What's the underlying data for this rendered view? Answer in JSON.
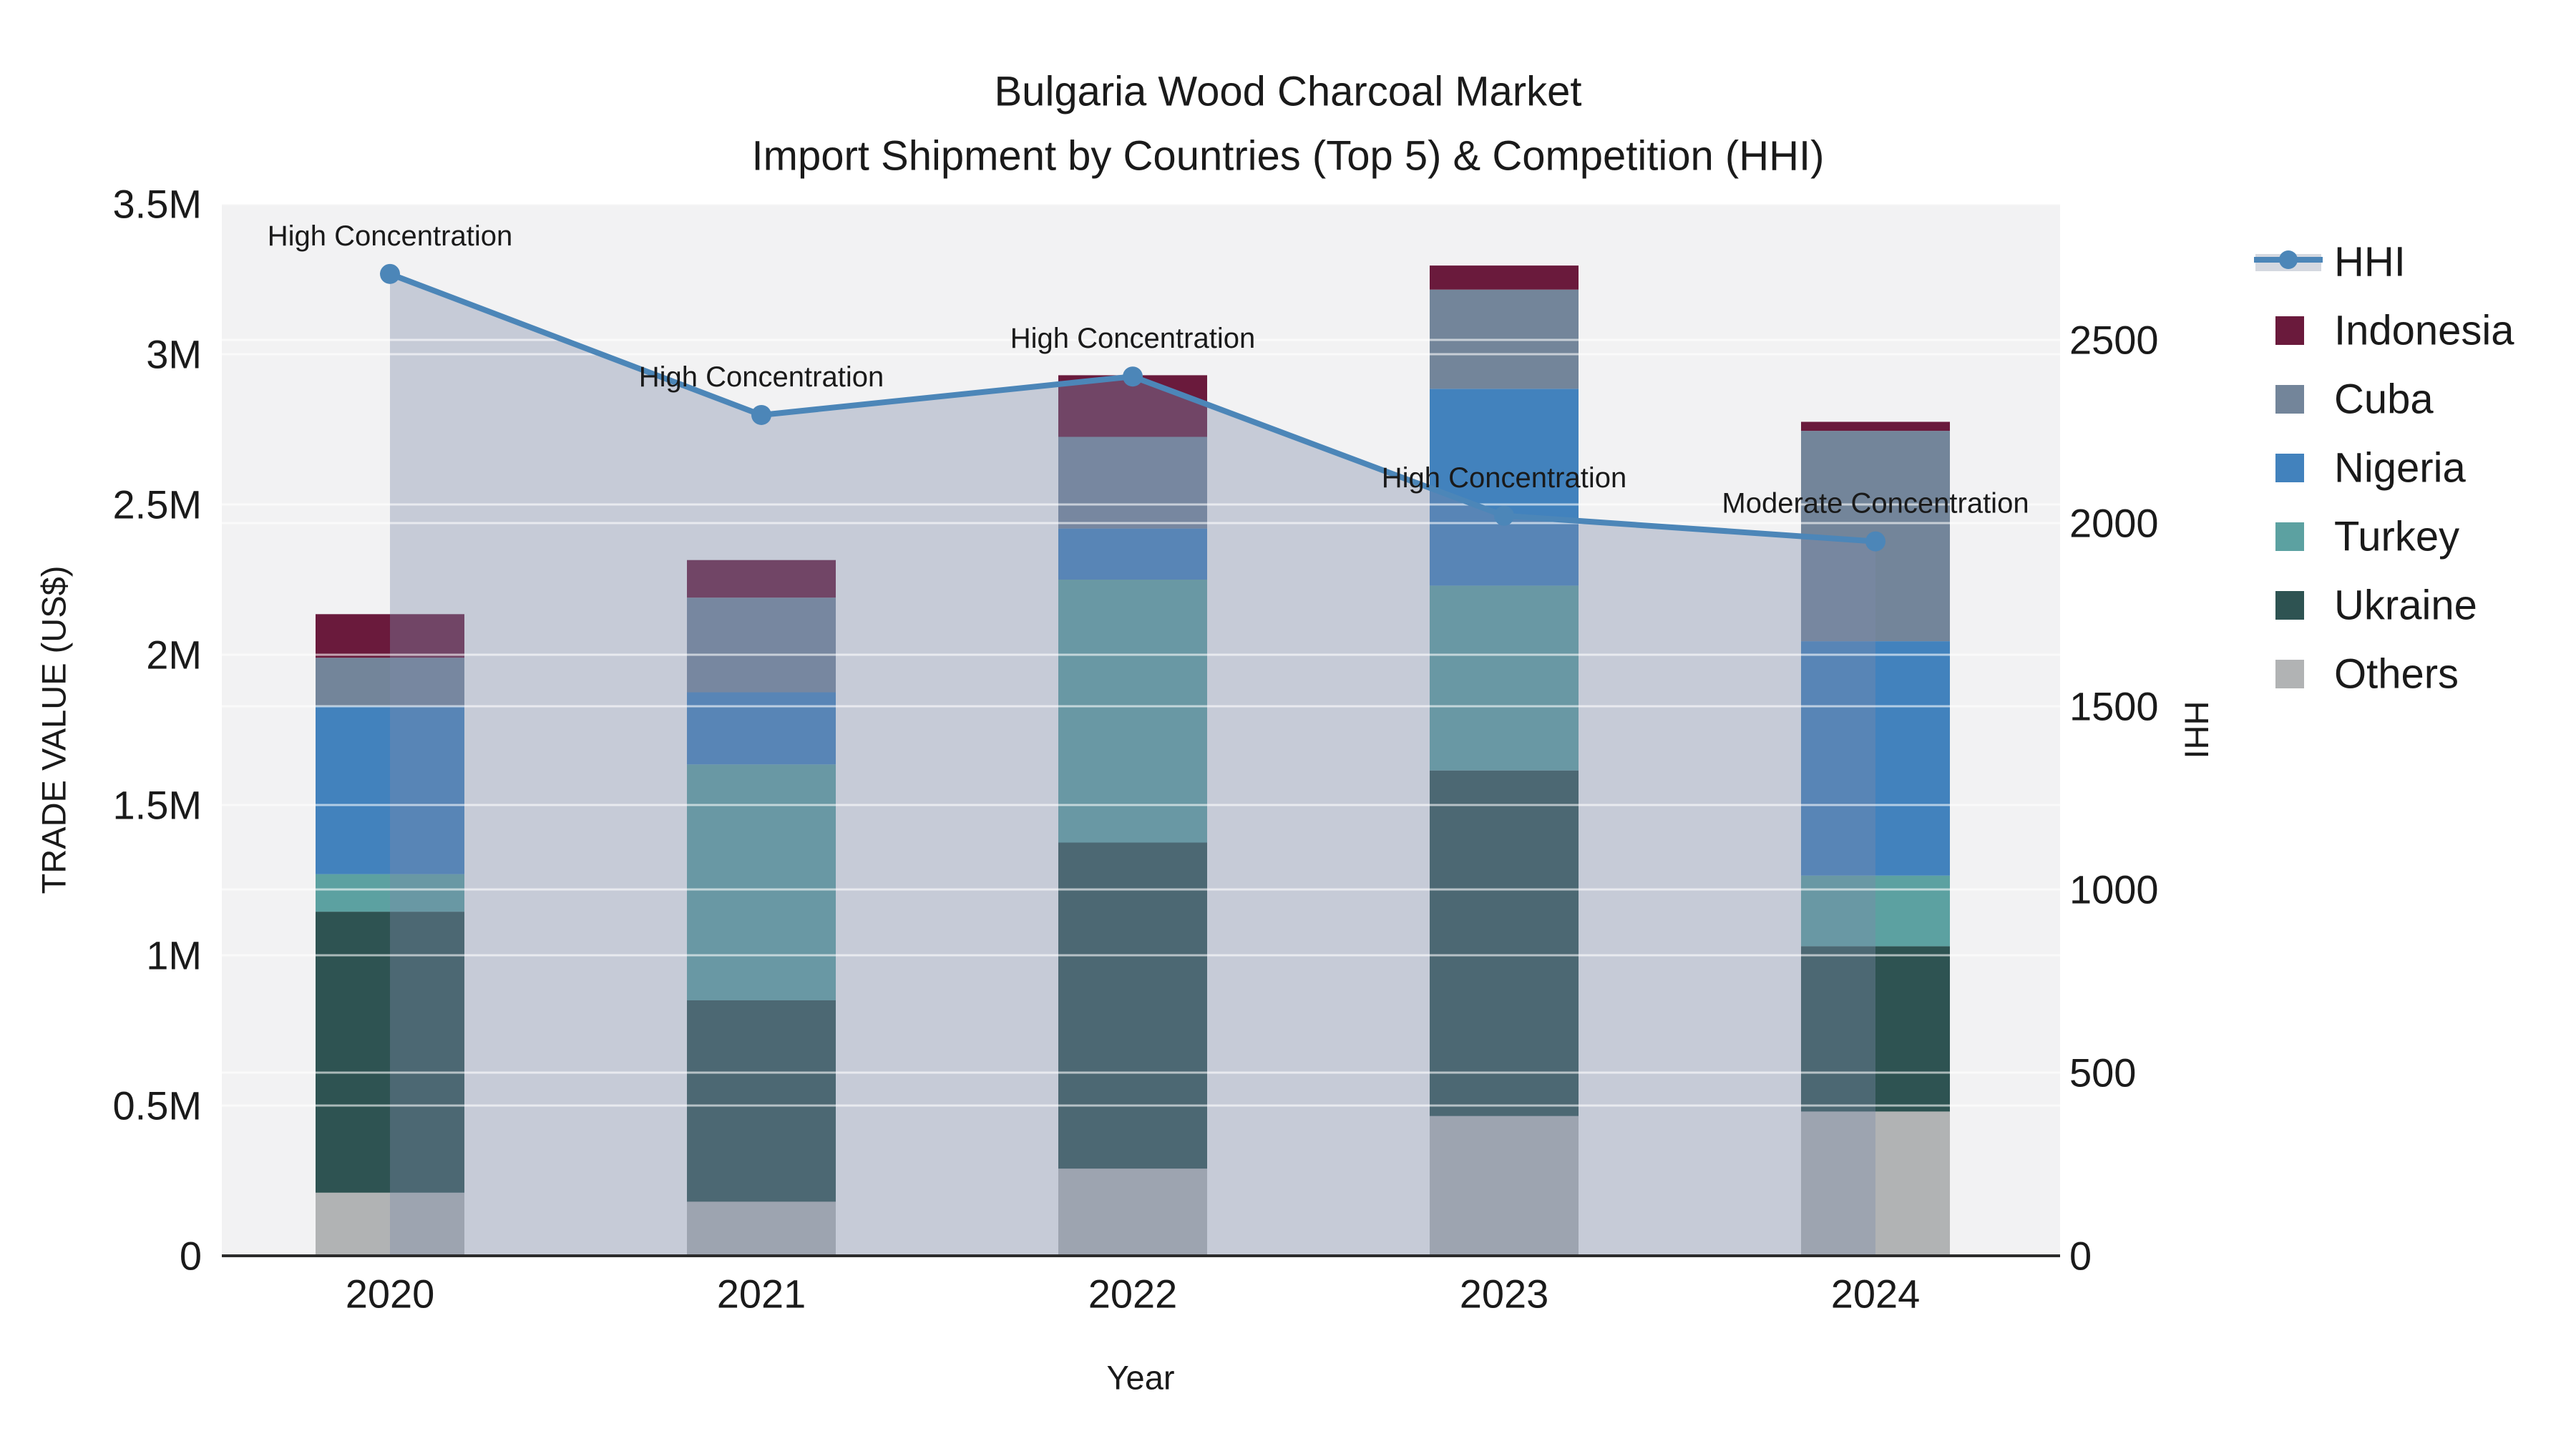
{
  "title": {
    "line1": "Bulgaria Wood Charcoal Market",
    "line2": "Import Shipment by Countries (Top 5) & Competition (HHI)"
  },
  "axes": {
    "x": {
      "label": "Year",
      "ticks": [
        "2020",
        "2021",
        "2022",
        "2023",
        "2024"
      ]
    },
    "y_left": {
      "label": "TRADE VALUE (US$)",
      "ticks": [
        "0",
        "0.5M",
        "1M",
        "1.5M",
        "2M",
        "2.5M",
        "3M",
        "3.5M"
      ],
      "max": 3500000,
      "tick_step": 500000
    },
    "y_right": {
      "label": "HHI",
      "ticks": [
        "0",
        "500",
        "1000",
        "1500",
        "2000",
        "2500"
      ],
      "tick_step": 500
    }
  },
  "chart_data": {
    "type": "bar+line",
    "categories": [
      "2020",
      "2021",
      "2022",
      "2023",
      "2024"
    ],
    "stacked": true,
    "grid": true,
    "legend_position": "right",
    "ylabel_left": "TRADE VALUE (US$)",
    "ylabel_right": "HHI",
    "xlabel": "Year",
    "ylim_left": [
      0,
      3500000
    ],
    "series": [
      {
        "name": "Others",
        "color": "#b1b3b4",
        "values": [
          210000,
          180000,
          290000,
          465000,
          480000
        ]
      },
      {
        "name": "Ukraine",
        "color": "#2e5352",
        "values": [
          935000,
          670000,
          1085000,
          1150000,
          550000
        ]
      },
      {
        "name": "Turkey",
        "color": "#5ca1a1",
        "values": [
          125000,
          785000,
          875000,
          615000,
          235000
        ]
      },
      {
        "name": "Nigeria",
        "color": "#4282bd",
        "values": [
          560000,
          240000,
          170000,
          655000,
          780000
        ]
      },
      {
        "name": "Cuba",
        "color": "#73859a",
        "values": [
          160000,
          315000,
          305000,
          330000,
          700000
        ]
      },
      {
        "name": "Indonesia",
        "color": "#6a1a3c",
        "values": [
          145000,
          125000,
          205000,
          80000,
          30000
        ]
      }
    ],
    "bar_totals": [
      2135000,
      2315000,
      2930000,
      3295000,
      2775000
    ],
    "line_series": {
      "name": "HHI",
      "color": "#4c86b8",
      "area_fill": "rgba(125,140,170,0.38)",
      "values": [
        2680,
        2295,
        2400,
        2020,
        1950
      ]
    },
    "annotations": [
      {
        "category": "2020",
        "label": "High Concentration"
      },
      {
        "category": "2021",
        "label": "High Concentration"
      },
      {
        "category": "2022",
        "label": "High Concentration"
      },
      {
        "category": "2023",
        "label": "High Concentration"
      },
      {
        "category": "2024",
        "label": "Moderate Concentration"
      }
    ]
  },
  "legend": {
    "items": [
      {
        "label": "HHI",
        "type": "line"
      },
      {
        "label": "Indonesia",
        "type": "square"
      },
      {
        "label": "Cuba",
        "type": "square"
      },
      {
        "label": "Nigeria",
        "type": "square"
      },
      {
        "label": "Turkey",
        "type": "square"
      },
      {
        "label": "Ukraine",
        "type": "square"
      },
      {
        "label": "Others",
        "type": "square"
      }
    ]
  },
  "colors": {
    "plot_background": "#f2f2f3",
    "gridline": "rgba(255,255,255,0.6)",
    "axis_line": "#2b2b2b",
    "hhi_legend_band": "#d4d8e0",
    "text": "#1a1a1a"
  }
}
